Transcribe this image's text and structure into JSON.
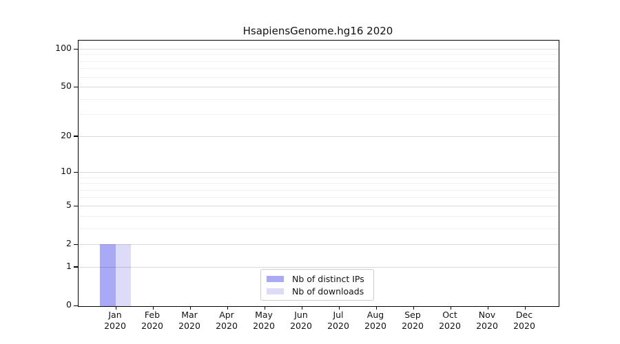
{
  "page": {
    "background": "#ffffff"
  },
  "chart_data": {
    "type": "bar",
    "title": "HsapiensGenome.hg16 2020",
    "year": "2020",
    "categories": [
      "Jan",
      "Feb",
      "Mar",
      "Apr",
      "May",
      "Jun",
      "Jul",
      "Aug",
      "Sep",
      "Oct",
      "Nov",
      "Dec"
    ],
    "series": [
      {
        "name": "Nb of distinct IPs",
        "color": "#a9a9f5",
        "values": [
          2,
          0,
          0,
          0,
          0,
          0,
          0,
          0,
          0,
          0,
          0,
          0
        ]
      },
      {
        "name": "Nb of downloads",
        "color": "#dcdcf9",
        "values": [
          2,
          0,
          0,
          0,
          0,
          0,
          0,
          0,
          0,
          0,
          0,
          0
        ]
      }
    ],
    "xlabel": "",
    "ylabel": "",
    "y_scale": "log1p",
    "y_ticks": [
      0,
      1,
      2,
      5,
      10,
      20,
      50,
      100
    ],
    "y_minor_gridlines": [
      3,
      4,
      6,
      7,
      8,
      9,
      30,
      40,
      60,
      70,
      80,
      90
    ],
    "ylim": [
      0,
      117
    ],
    "grid": "horizontal-only",
    "legend_position": "lower-center-inside",
    "axis_color": "#000000",
    "grid_major_color": "#d9d9d9",
    "grid_minor_color": "#f0f0f0",
    "legend_border_color": "#cccccc"
  }
}
